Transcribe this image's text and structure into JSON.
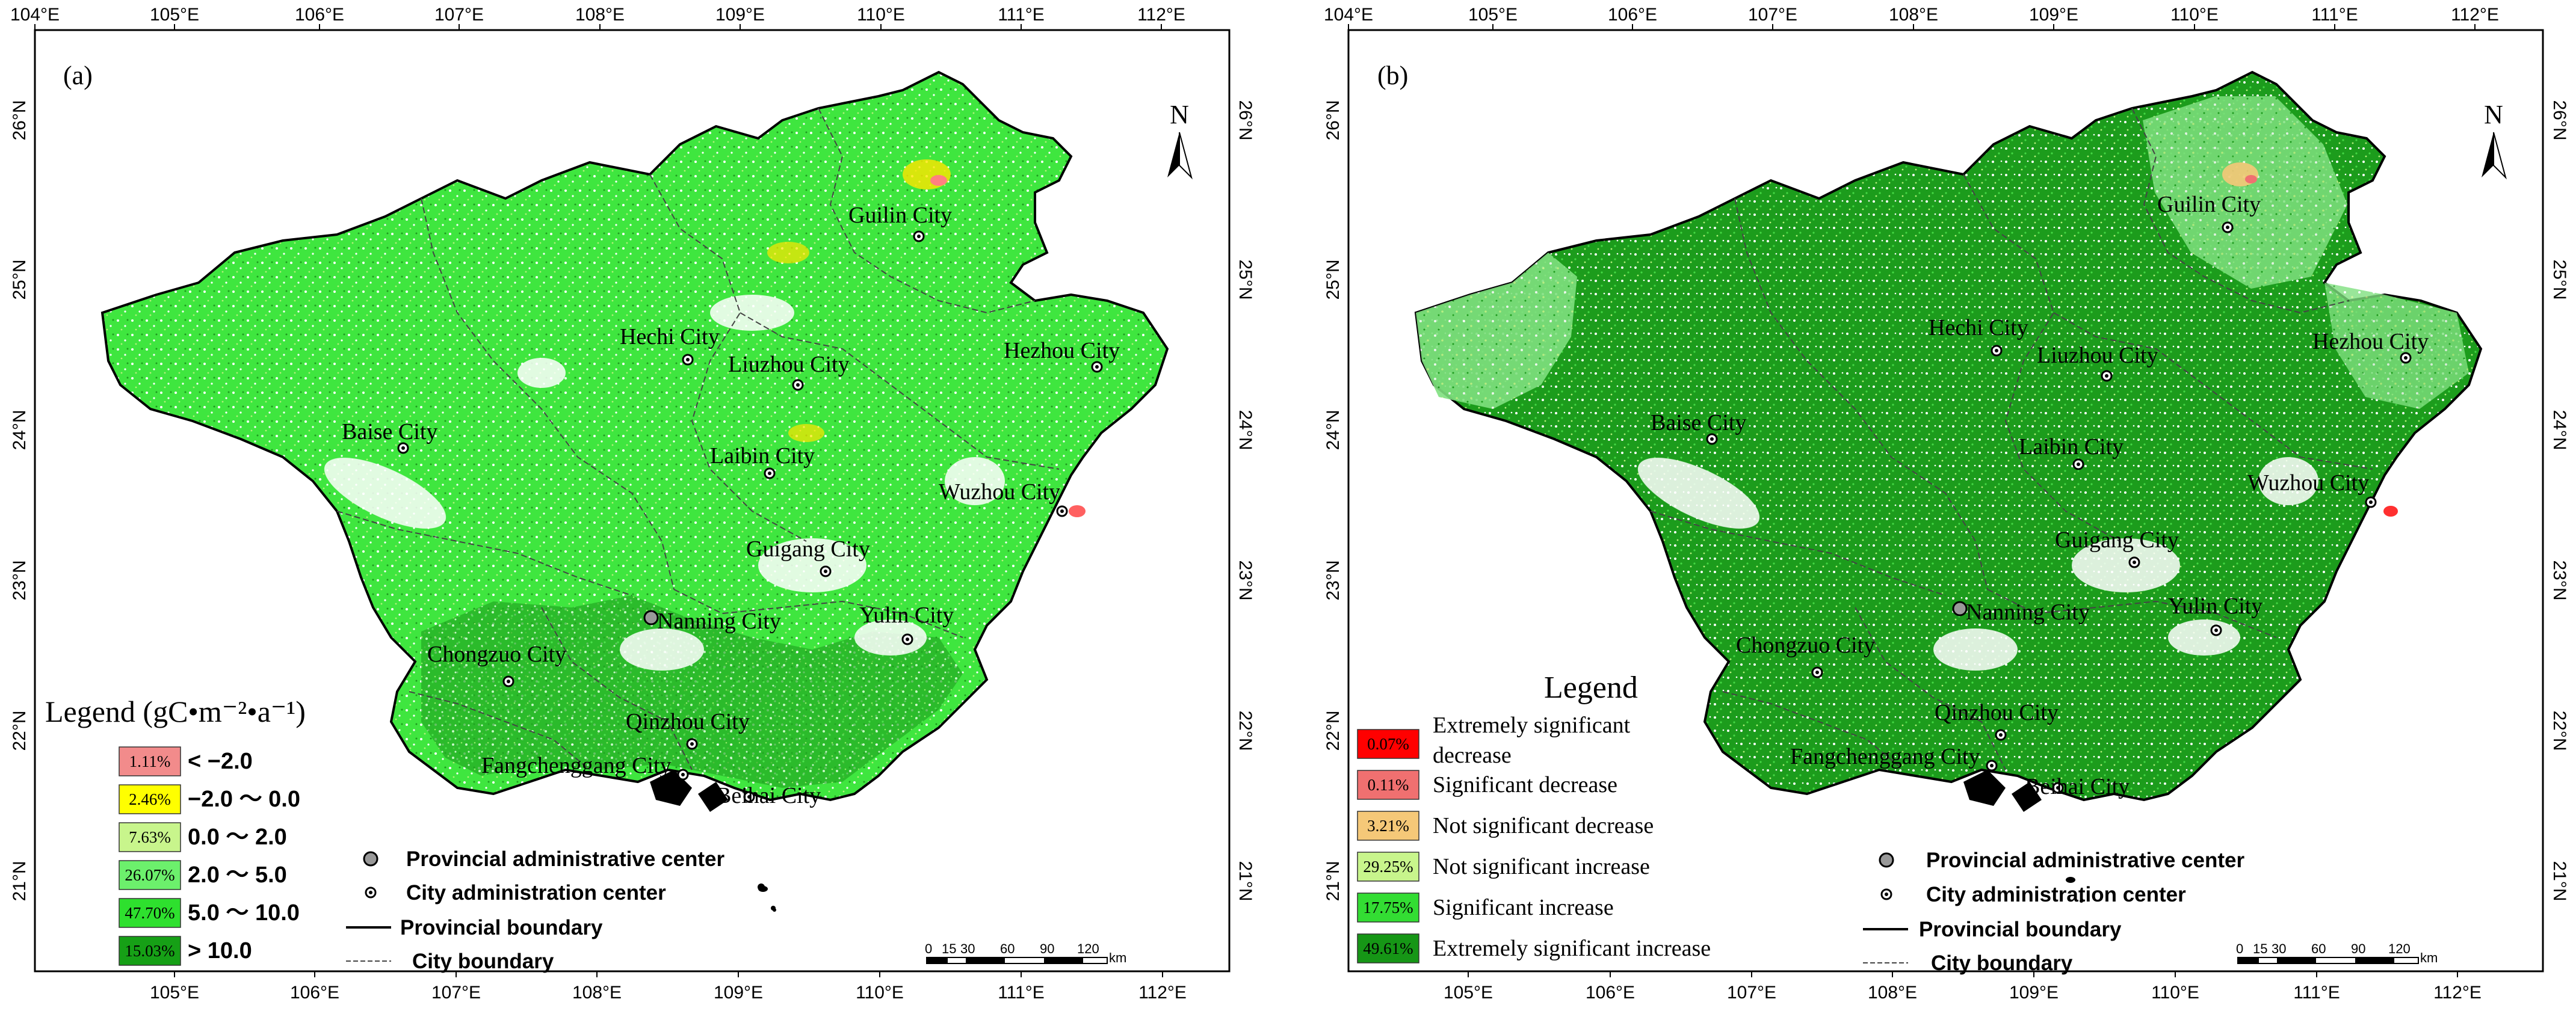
{
  "panels": [
    {
      "label": "(a)",
      "legend_title": "Legend (gC•m⁻²•a⁻¹)",
      "lon_ticks": [
        "104°E",
        "105°E",
        "106°E",
        "107°E",
        "108°E",
        "109°E",
        "110°E",
        "111°E",
        "112°E"
      ],
      "lon_ticks_bottom": [
        "105°E",
        "106°E",
        "107°E",
        "108°E",
        "109°E",
        "110°E",
        "111°E",
        "112°E"
      ],
      "lat_ticks": [
        "26°N",
        "25°N",
        "24°N",
        "23°N",
        "22°N",
        "21°N"
      ],
      "legend": [
        {
          "pct": "1.11%",
          "label": "< −2.0",
          "color": "#f28b8b"
        },
        {
          "pct": "2.46%",
          "label": "−2.0 ～ 0.0",
          "color": "#ffff00"
        },
        {
          "pct": "7.63%",
          "label": "0.0 ～ 2.0",
          "color": "#c8f58c"
        },
        {
          "pct": "26.07%",
          "label": "2.0 ～ 5.0",
          "color": "#6cf06c"
        },
        {
          "pct": "47.70%",
          "label": "5.0 ～ 10.0",
          "color": "#2ee02e"
        },
        {
          "pct": "15.03%",
          "label": "> 10.0",
          "color": "#16a016"
        }
      ],
      "cities": [
        "Guilin City",
        "Hechi City",
        "Liuzhou City",
        "Hezhou City",
        "Baise City",
        "Laibin City",
        "Wuzhou City",
        "Guigang City",
        "Nanning City",
        "Yulin City",
        "Chongzuo City",
        "Qinzhou City",
        "Fangchenggang City",
        "Beihai City"
      ]
    },
    {
      "label": "(b)",
      "legend_title": "Legend",
      "lon_ticks": [
        "104°E",
        "105°E",
        "106°E",
        "107°E",
        "108°E",
        "109°E",
        "110°E",
        "111°E",
        "112°E"
      ],
      "lon_ticks_bottom": [
        "105°E",
        "106°E",
        "107°E",
        "108°E",
        "109°E",
        "110°E",
        "111°E",
        "112°E"
      ],
      "lat_ticks": [
        "26°N",
        "25°N",
        "24°N",
        "23°N",
        "22°N",
        "21°N"
      ],
      "legend": [
        {
          "pct": "0.07%",
          "label": "Extremely significant",
          "label2": "decrease",
          "color": "#ff0000"
        },
        {
          "pct": "0.11%",
          "label": "Significant decrease",
          "color": "#f07070"
        },
        {
          "pct": "3.21%",
          "label": "Not significant decrease",
          "color": "#f5c878"
        },
        {
          "pct": "29.25%",
          "label": "Not significant increase",
          "color": "#c8f58c"
        },
        {
          "pct": "17.75%",
          "label": "Significant increase",
          "color": "#33dd33"
        },
        {
          "pct": "49.61%",
          "label": "Extremely significant increase",
          "color": "#169616"
        }
      ],
      "cities": [
        "Guilin City",
        "Hechi City",
        "Liuzhou City",
        "Hezhou City",
        "Baise City",
        "Laibin City",
        "Wuzhou City",
        "Guigang City",
        "Nanning City",
        "Yulin City",
        "Chongzuo City",
        "Qinzhou City",
        "Fangchenggang City",
        "Beihai City"
      ]
    }
  ],
  "symbols": {
    "provincial_center": "Provincial administrative center",
    "city_center": "City administration center",
    "provincial_boundary": "Provincial boundary",
    "city_boundary": "City boundary"
  },
  "north_arrow": "N",
  "scale_bar": {
    "ticks": [
      "0",
      "15",
      "30",
      "60",
      "90",
      "120"
    ],
    "unit": "km"
  },
  "colors": {
    "base_green": "#3fe63f",
    "dark_green": "#1e9a1e",
    "light_green": "#b4f07a",
    "no_data": "#ffffff"
  }
}
